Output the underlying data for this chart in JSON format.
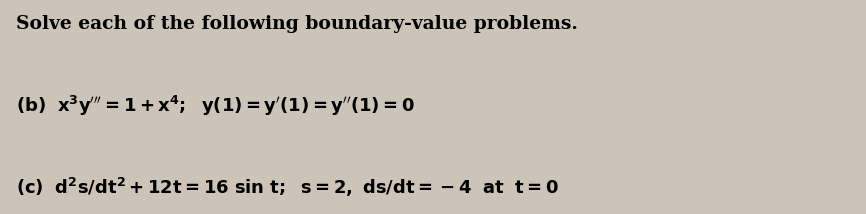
{
  "title": "Solve each of the following boundary-value problems.",
  "bg_color": "#ccc4b8",
  "text_color": "#000000",
  "title_fontsize": 13.5,
  "body_fontsize": 13.0,
  "fig_width": 8.66,
  "fig_height": 2.14
}
